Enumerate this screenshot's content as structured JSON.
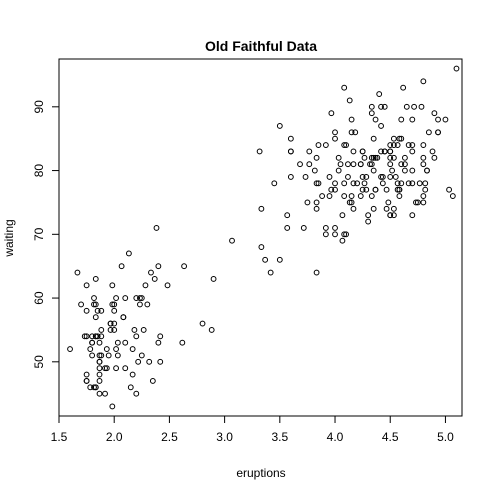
{
  "chart_data": {
    "type": "scatter",
    "title": "Old Faithful Data",
    "xlabel": "eruptions",
    "ylabel": "waiting",
    "xlim": [
      1.5,
      5.15
    ],
    "ylim": [
      41.5,
      97.5
    ],
    "xticks": [
      1.5,
      2.0,
      2.5,
      3.0,
      3.5,
      4.0,
      4.5,
      5.0
    ],
    "xtick_labels": [
      "1.5",
      "2.0",
      "2.5",
      "3.0",
      "3.5",
      "4.0",
      "4.5",
      "5.0"
    ],
    "yticks": [
      50,
      60,
      70,
      80,
      90
    ],
    "ytick_labels": [
      "50",
      "60",
      "70",
      "80",
      "90"
    ],
    "grid": false,
    "legend": "none",
    "point_color": "#000000",
    "x": [
      3.6,
      1.8,
      3.333,
      2.283,
      4.533,
      2.883,
      4.7,
      3.6,
      1.95,
      4.35,
      1.833,
      3.917,
      4.2,
      1.75,
      4.7,
      2.167,
      1.75,
      4.8,
      1.6,
      4.25,
      1.8,
      1.75,
      3.45,
      3.067,
      4.533,
      3.6,
      1.967,
      4.083,
      3.85,
      4.433,
      4.3,
      4.467,
      3.367,
      4.033,
      3.833,
      2.017,
      1.867,
      4.833,
      1.833,
      4.783,
      4.35,
      1.883,
      4.567,
      1.75,
      4.533,
      3.317,
      3.833,
      2.1,
      4.633,
      2,
      4.8,
      4.716,
      1.833,
      4.833,
      1.733,
      4.883,
      3.717,
      1.667,
      4.567,
      4.317,
      2.233,
      4.5,
      1.75,
      4.8,
      1.817,
      4.4,
      4.167,
      4.7,
      2.067,
      4.7,
      4.033,
      1.967,
      4.5,
      4,
      1.983,
      5.067,
      2.017,
      4.567,
      3.883,
      3.6,
      4.133,
      4.333,
      4.1,
      2.633,
      4.067,
      4.933,
      3.95,
      4.517,
      2.167,
      4,
      2.2,
      4.333,
      1.867,
      4.817,
      1.833,
      4.3,
      4.667,
      3.75,
      1.867,
      4.9,
      2.483,
      4.367,
      2.1,
      4.5,
      4.05,
      1.867,
      4.7,
      1.783,
      4.85,
      3.683,
      4.733,
      2.3,
      4.9,
      4.417,
      1.7,
      4.633,
      2.317,
      4.6,
      1.817,
      4.417,
      2.617,
      4.067,
      4.25,
      1.967,
      4.6,
      3.767,
      1.917,
      4.5,
      2.267,
      4.65,
      1.867,
      4.167,
      2.8,
      4.333,
      1.833,
      4.383,
      1.883,
      4.933,
      2.033,
      3.733,
      4.233,
      2.233,
      4.533,
      4.817,
      4.333,
      1.983,
      4.633,
      2.017,
      5.1,
      1.8,
      5.033,
      4,
      2.4,
      4.6,
      3.567,
      4,
      4.5,
      4.083,
      1.8,
      3.967,
      2.2,
      4.15,
      2,
      3.833,
      3.5,
      4.583,
      2.367,
      5,
      1.933,
      4.617,
      1.917,
      2.083,
      4.583,
      3.333,
      4.167,
      4.333,
      4.5,
      2.417,
      4,
      4.167,
      1.883,
      4.583,
      4.25,
      3.767,
      2.033,
      4.433,
      4.083,
      1.833,
      4.417,
      2.183,
      4.8,
      1.833,
      4.8,
      4.1,
      3.966,
      4.233,
      3.5,
      4.366,
      2.25,
      4.667,
      2.1,
      4.35,
      4.133,
      1.867,
      4.6,
      1.783,
      4.367,
      3.85,
      1.933,
      4.5,
      2.383,
      4.7,
      1.867,
      3.833,
      3.417,
      4.233,
      2.4,
      4.8,
      2,
      4.15,
      1.867,
      4.267,
      1.75,
      4.483,
      4,
      4.117,
      4.083,
      4.267,
      3.917,
      4.55,
      4.083,
      2.417,
      4.183,
      2.217,
      4.45,
      1.883,
      1.85,
      4.283,
      3.95,
      2.333,
      4.15,
      2.35,
      4.933,
      2.9,
      4.583,
      3.833,
      2.083,
      4.367,
      2.133,
      4.35,
      2.2,
      4.45,
      3.567,
      4.5,
      4.15,
      3.817,
      3.917,
      4.45,
      2,
      4.283,
      4.767,
      4.533,
      1.85,
      4.25,
      1.983,
      2.25,
      4.75,
      4.117,
      2.15,
      4.417,
      1.817,
      4.467
    ],
    "y": [
      79,
      54,
      74,
      62,
      85,
      55,
      88,
      85,
      51,
      85,
      54,
      84,
      78,
      47,
      83,
      52,
      62,
      84,
      52,
      79,
      51,
      47,
      78,
      69,
      74,
      83,
      55,
      76,
      78,
      79,
      73,
      77,
      66,
      80,
      74,
      52,
      48,
      80,
      59,
      90,
      80,
      58,
      84,
      58,
      73,
      83,
      64,
      53,
      82,
      59,
      75,
      90,
      54,
      80,
      54,
      83,
      71,
      64,
      77,
      81,
      59,
      84,
      48,
      82,
      60,
      92,
      78,
      78,
      65,
      73,
      82,
      56,
      79,
      71,
      62,
      76,
      60,
      78,
      76,
      83,
      75,
      82,
      70,
      65,
      73,
      88,
      76,
      80,
      48,
      86,
      60,
      90,
      50,
      78,
      63,
      72,
      84,
      75,
      51,
      82,
      62,
      88,
      49,
      83,
      81,
      47,
      84,
      52,
      86,
      81,
      75,
      59,
      89,
      79,
      59,
      81,
      50,
      85,
      59,
      87,
      53,
      69,
      77,
      56,
      88,
      81,
      45,
      82,
      55,
      90,
      45,
      83,
      56,
      89,
      46,
      82,
      51,
      86,
      53,
      79,
      81,
      60,
      82,
      77,
      76,
      59,
      80,
      49,
      96,
      53,
      77,
      77,
      65,
      81,
      71,
      70,
      81,
      93,
      53,
      89,
      45,
      86,
      58,
      78,
      66,
      76,
      63,
      88,
      52,
      93,
      49,
      57,
      77,
      68,
      81,
      81,
      73,
      50,
      85,
      74,
      55,
      77,
      83,
      83,
      51,
      78,
      84,
      46,
      83,
      55,
      81,
      57,
      76,
      84,
      77,
      81,
      87,
      77,
      51,
      78,
      60,
      82,
      91,
      53,
      78,
      46,
      77,
      84,
      49,
      83,
      71,
      80,
      49,
      75,
      64,
      76,
      53,
      94,
      55,
      76,
      50,
      82,
      54,
      75,
      78,
      79,
      78,
      78,
      70,
      79,
      70,
      54,
      86,
      50,
      90,
      54,
      54,
      77,
      79,
      64,
      75,
      47,
      86,
      63,
      85,
      82,
      57,
      82,
      67,
      74,
      54,
      83,
      73,
      73,
      88,
      80,
      71,
      83,
      56,
      79,
      78,
      84,
      58,
      83,
      43,
      60,
      75,
      81,
      46,
      90,
      46,
      74
    ]
  }
}
